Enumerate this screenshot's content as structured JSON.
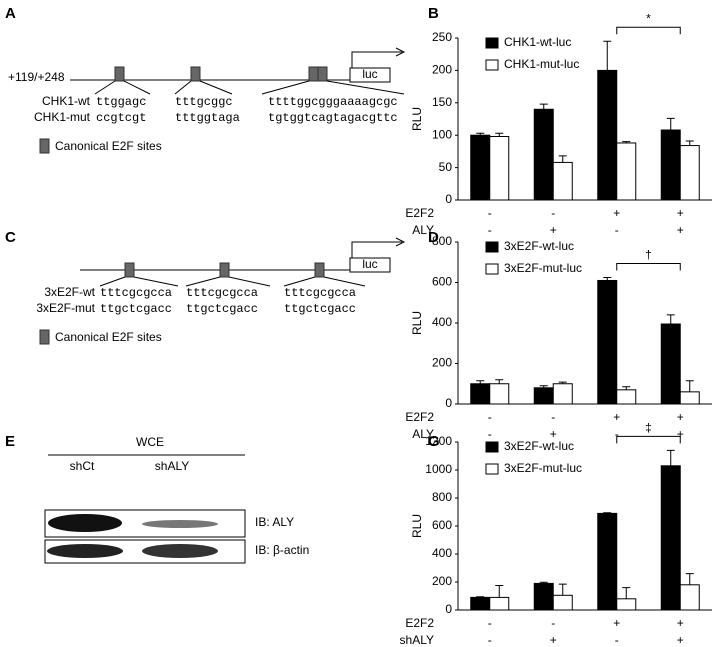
{
  "panels": {
    "a": "A",
    "b": "B",
    "c": "C",
    "d": "D",
    "e": "E",
    "g": "G"
  },
  "diagram_a": {
    "position": "+119/+248",
    "reporter": "luc",
    "rows": [
      {
        "name": "CHK1-wt",
        "seqs": [
          "ttggagc",
          "tttgcggc",
          "ttttggcgggaaaagcgc"
        ]
      },
      {
        "name": "CHK1-mut",
        "seqs": [
          "ccgtcgt",
          "tttggtaga",
          "tgtggtcagtagacgttc"
        ]
      }
    ],
    "legend": "Canonical E2F sites"
  },
  "diagram_c": {
    "reporter": "luc",
    "rows": [
      {
        "name": "3xE2F-wt",
        "seqs": [
          "tttcgcgcca",
          "tttcgcgcca",
          "tttcgcgcca"
        ]
      },
      {
        "name": "3xE2F-mut",
        "seqs": [
          "ttgctcgacc",
          "ttgctcgacc",
          "ttgctcgacc"
        ]
      }
    ],
    "legend": "Canonical E2F sites"
  },
  "blot": {
    "header": "WCE",
    "lanes": [
      "shCt",
      "shALY"
    ],
    "rows": [
      "IB: ALY",
      "IB: β-actin"
    ]
  },
  "chart_data": [
    {
      "type": "bar",
      "y_label": "RLU",
      "ylim": [
        0,
        250
      ],
      "yticks": [
        0,
        50,
        100,
        150,
        200,
        250
      ],
      "factors": [
        {
          "name": "E2F2",
          "levels": [
            "-",
            "-",
            "+",
            "+"
          ]
        },
        {
          "name": "ALY",
          "levels": [
            "-",
            "+",
            "-",
            "+"
          ]
        }
      ],
      "series": [
        {
          "name": "CHK1-wt-luc",
          "color": "#000000",
          "values": [
            100,
            140,
            200,
            108
          ],
          "errors": [
            3,
            8,
            45,
            18
          ]
        },
        {
          "name": "CHK1-mut-luc",
          "color": "#ffffff",
          "values": [
            98,
            58,
            88,
            84
          ],
          "errors": [
            5,
            10,
            2,
            7
          ]
        }
      ],
      "annotation": {
        "text": "*",
        "groups": [
          2,
          3
        ]
      }
    },
    {
      "type": "bar",
      "y_label": "RLU",
      "ylim": [
        0,
        800
      ],
      "yticks": [
        0,
        200,
        400,
        600,
        800
      ],
      "factors": [
        {
          "name": "E2F2",
          "levels": [
            "-",
            "-",
            "+",
            "+"
          ]
        },
        {
          "name": "ALY",
          "levels": [
            "-",
            "+",
            "-",
            "+"
          ]
        }
      ],
      "series": [
        {
          "name": "3xE2F-wt-luc",
          "color": "#000000",
          "values": [
            100,
            80,
            610,
            395
          ],
          "errors": [
            15,
            10,
            15,
            45
          ]
        },
        {
          "name": "3xE2F-mut-luc",
          "color": "#ffffff",
          "values": [
            100,
            100,
            70,
            60
          ],
          "errors": [
            20,
            8,
            15,
            55
          ]
        }
      ],
      "annotation": {
        "text": "†",
        "groups": [
          2,
          3
        ]
      }
    },
    {
      "type": "bar",
      "y_label": "RLU",
      "ylim": [
        0,
        1200
      ],
      "yticks": [
        0,
        200,
        400,
        600,
        800,
        1000,
        1200
      ],
      "factors": [
        {
          "name": "E2F2",
          "levels": [
            "-",
            "-",
            "+",
            "+"
          ]
        },
        {
          "name": "shALY",
          "levels": [
            "-",
            "+",
            "-",
            "+"
          ]
        }
      ],
      "series": [
        {
          "name": "3xE2F-wt-luc",
          "color": "#000000",
          "values": [
            90,
            190,
            690,
            1030
          ],
          "errors": [
            5,
            8,
            5,
            110
          ]
        },
        {
          "name": "3xE2F-mut-luc",
          "color": "#ffffff",
          "values": [
            90,
            105,
            80,
            180
          ],
          "errors": [
            85,
            80,
            80,
            80
          ]
        }
      ],
      "annotation": {
        "text": "‡",
        "groups": [
          2,
          3
        ]
      }
    }
  ]
}
